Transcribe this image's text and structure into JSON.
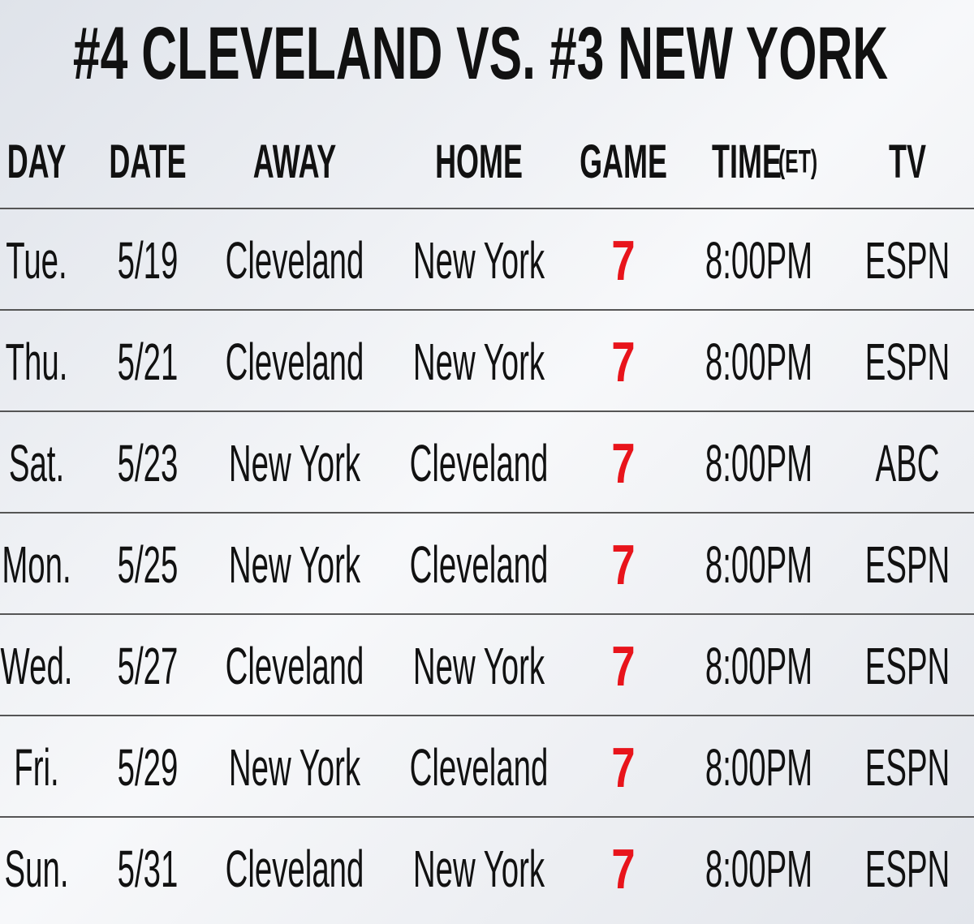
{
  "title": "#4 CLEVELAND VS. #3 NEW YORK",
  "table": {
    "headers": [
      "DAY",
      "DATE",
      "AWAY",
      "HOME",
      "GAME",
      "TIME",
      "TV"
    ],
    "time_unit": "(ET)",
    "rows": [
      [
        "Tue.",
        "5/19",
        "Cleveland",
        "New York",
        "7",
        "8:00PM",
        "ESPN"
      ],
      [
        "Thu.",
        "5/21",
        "Cleveland",
        "New York",
        "7",
        "8:00PM",
        "ESPN"
      ],
      [
        "Sat.",
        "5/23",
        "New York",
        "Cleveland",
        "7",
        "8:00PM",
        "ABC"
      ],
      [
        "Mon.",
        "5/25",
        "New York",
        "Cleveland",
        "7",
        "8:00PM",
        "ESPN"
      ],
      [
        "Wed.",
        "5/27",
        "Cleveland",
        "New York",
        "7",
        "8:00PM",
        "ESPN"
      ],
      [
        "Fri.",
        "5/29",
        "New York",
        "Cleveland",
        "7",
        "8:00PM",
        "ESPN"
      ],
      [
        "Sun.",
        "5/31",
        "Cleveland",
        "New York",
        "7",
        "8:00PM",
        "ESPN"
      ]
    ]
  }
}
